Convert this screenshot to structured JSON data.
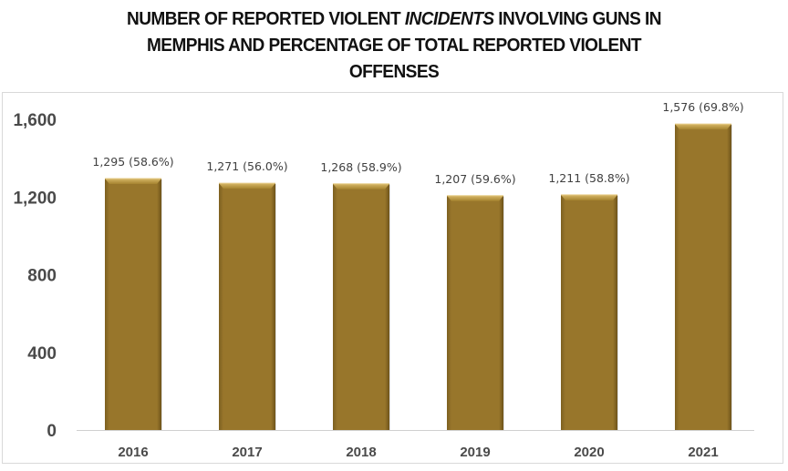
{
  "chart_data": {
    "type": "bar",
    "title_parts": [
      {
        "text": "NUMBER OF REPORTED VIOLENT ",
        "italic": false
      },
      {
        "text": "INCIDENTS",
        "italic": true
      },
      {
        "text": " INVOLVING GUNS IN",
        "italic": false
      },
      {
        "text": "\n",
        "italic": false
      },
      {
        "text": "MEMPHIS AND PERCENTAGE OF TOTAL REPORTED VIOLENT",
        "italic": false
      },
      {
        "text": "\n",
        "italic": false
      },
      {
        "text": "OFFENSES",
        "italic": false
      }
    ],
    "title": "NUMBER OF REPORTED VIOLENT INCIDENTS INVOLVING GUNS IN MEMPHIS AND PERCENTAGE OF TOTAL REPORTED VIOLENT OFFENSES",
    "xlabel": "",
    "ylabel": "",
    "categories": [
      "2016",
      "2017",
      "2018",
      "2019",
      "2020",
      "2021"
    ],
    "values": [
      1295,
      1271,
      1268,
      1207,
      1211,
      1576
    ],
    "percentages": [
      58.6,
      56.0,
      58.9,
      59.6,
      58.8,
      69.8
    ],
    "data_labels": [
      "1,295 (58.6%)",
      "1,271 (56.0%)",
      "1,268  (58.9%)",
      "1,207 (59.6%)",
      "1,211 (58.8%)",
      "1,576 (69.8%)"
    ],
    "ylim": [
      0,
      1600
    ],
    "yticks": [
      0,
      400,
      800,
      1200,
      1600
    ],
    "ytick_labels": [
      "0",
      "400",
      "800",
      "1,200",
      "1,600"
    ],
    "grid": false,
    "legend": "none",
    "bar_color": "#98762b",
    "bar_highlight": "#c9a552",
    "bar_shadow": "#6e531a"
  }
}
